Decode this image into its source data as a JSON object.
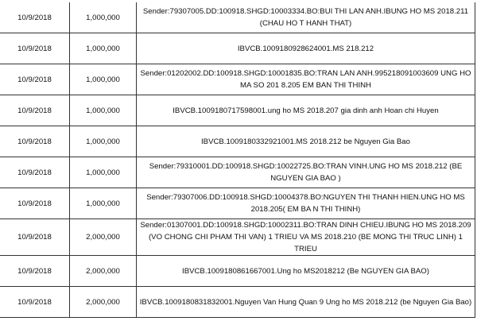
{
  "rows": [
    {
      "date": "10/9/2018",
      "amount": "1,000,000",
      "description": "Sender:79307005.DD:100918.SHGD:10003334.BO:BUI THI LAN ANH.IBUNG HO MS 2018.211 (CHAU HO T HANH THAT)"
    },
    {
      "date": "10/9/2018",
      "amount": "1,000,000",
      "description": "IBVCB.1009180928624001.MS 218.212"
    },
    {
      "date": "10/9/2018",
      "amount": "1,000,000",
      "description": "Sender:01202002.DD:100918.SHGD:10001835.BO:TRAN LAN ANH.995218091003609 UNG HO MA SO 201 8.205 EM BAN THI THINH"
    },
    {
      "date": "10/9/2018",
      "amount": "1,000,000",
      "description": "IBVCB.1009180717598001.ung ho MS 2018.207 gia dinh anh Hoan chi Huyen"
    },
    {
      "date": "10/9/2018",
      "amount": "1,000,000",
      "description": "IBVCB.1009180332921001.MS 2018.212 be Nguyen Gia Bao"
    },
    {
      "date": "10/9/2018",
      "amount": "1,000,000",
      "description": "Sender:79310001.DD:100918.SHGD:10022725.BO:TRAN VINH.UNG HO MS 2018.212 (BE NGUYEN GIA BAO )"
    },
    {
      "date": "10/9/2018",
      "amount": "1,000,000",
      "description": "Sender:79307006.DD:100918.SHGD:10004378.BO:NGUYEN THI THANH HIEN.UNG HO MS 2018.205( EM BA N THI THINH)"
    },
    {
      "date": "10/9/2018",
      "amount": "2,000,000",
      "description": "Sender:01307001.DD:100918.SHGD:10002311.BO:TRAN DINH CHIEU.IBUNG HO MS 2018.209 (VO CHONG CHI PHAM THI VAN) 1 TRIEU VA MS 2018.210 (BE MONG THI TRUC LINH) 1 TRIEU"
    },
    {
      "date": "10/9/2018",
      "amount": "2,000,000",
      "description": "IBVCB.1009180861667001.Ung ho MS2018212 (Be NGUYEN GIA BAO)"
    },
    {
      "date": "10/9/2018",
      "amount": "2,000,000",
      "description": "IBVCB.1009180831832001.Nguyen Van Hung Quan 9 Ung ho MS 2018.212 (be Nguyen Gia Bao)"
    }
  ]
}
